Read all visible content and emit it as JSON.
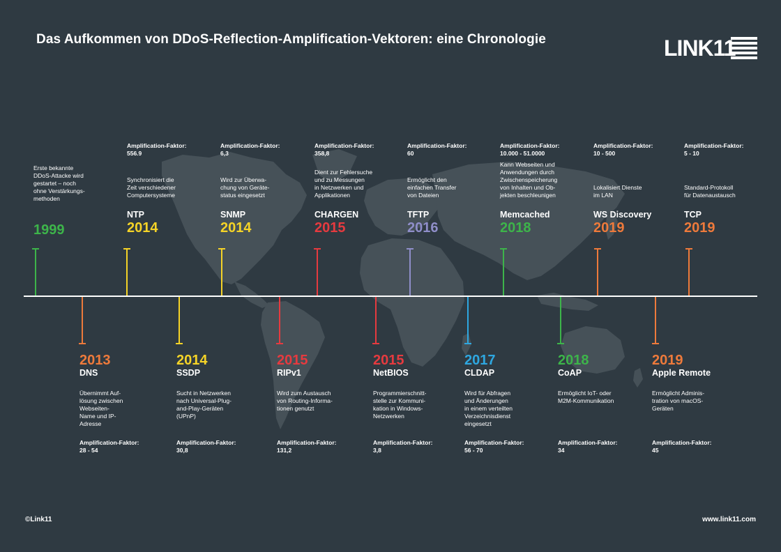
{
  "title": "Das Aufkommen von DDoS-Reflection-Amplification-Vektoren: eine Chronologie",
  "logo": {
    "text": "LINK11"
  },
  "colors": {
    "background": "#2f3a42",
    "map": "#465158",
    "green": "#3db44a",
    "yellow": "#f5d327",
    "red": "#e63a3f",
    "purple": "#8f8ec9",
    "orange": "#ee7a3b",
    "blue": "#2ea7e0"
  },
  "top_events": [
    {
      "year": "1999",
      "protocol": "",
      "color": "#3db44a",
      "description": "Erste bekannte\nDDoS-Attacke wird\ngestartet – noch\nohne Verstärkungs-\nmethoden",
      "amp_label": "",
      "amp_value": ""
    },
    {
      "year": "2014",
      "protocol": "NTP",
      "color": "#f5d327",
      "description": "Synchronisiert die\nZeit verschiedener\nComputersysteme",
      "amp_label": "Amplification-Faktor:",
      "amp_value": "556.9"
    },
    {
      "year": "2014",
      "protocol": "SNMP",
      "color": "#f5d327",
      "description": "Wird zur Überwa-\nchung von Geräte-\nstatus eingesetzt",
      "amp_label": "Amplification-Faktor:",
      "amp_value": "6,3"
    },
    {
      "year": "2015",
      "protocol": "CHARGEN",
      "color": "#e63a3f",
      "description": "Dient zur Fehlersuche\nund zu Messungen\nin Netzwerken und\nApplikationen",
      "amp_label": "Amplification-Faktor:",
      "amp_value": "358,8"
    },
    {
      "year": "2016",
      "protocol": "TFTP",
      "color": "#8f8ec9",
      "description": "Ermöglicht den\neinfachen Transfer\nvon Dateien",
      "amp_label": "Amplification-Faktor:",
      "amp_value": "60"
    },
    {
      "year": "2018",
      "protocol": "Memcached",
      "color": "#3db44a",
      "description": "Kann Webseiten und\nAnwendungen durch\nZwischenspeicherung\nvon Inhalten und Ob-\njekten beschleunigen",
      "amp_label": "Amplification-Faktor:",
      "amp_value": "10.000 - 51.0000"
    },
    {
      "year": "2019",
      "protocol": "WS Discovery",
      "color": "#ee7a3b",
      "description": "Lokalisiert Dienste\nim LAN",
      "amp_label": "Amplification-Faktor:",
      "amp_value": "10 - 500"
    },
    {
      "year": "2019",
      "protocol": "TCP",
      "color": "#ee7a3b",
      "description": "Standard-Protokoll\nfür Datenaustausch",
      "amp_label": "Amplification-Faktor:",
      "amp_value": "5 - 10"
    }
  ],
  "bottom_events": [
    {
      "year": "2013",
      "protocol": "DNS",
      "color": "#ee7a3b",
      "description": "Übernimmt Auf-\nlösung zwischen\nWebseiten-\nName und IP-\nAdresse",
      "amp_label": "Amplification-Faktor:",
      "amp_value": "28 - 54"
    },
    {
      "year": "2014",
      "protocol": "SSDP",
      "color": "#f5d327",
      "description": "Sucht in Netzwerken\nnach Universal-Plug-\nand-Play-Geräten\n(UPnP)",
      "amp_label": "Amplification-Faktor:",
      "amp_value": "30,8"
    },
    {
      "year": "2015",
      "protocol": "RIPv1",
      "color": "#e63a3f",
      "description": "Wird zum Austausch\nvon Routing-Informa-\ntionen genutzt",
      "amp_label": "Amplification-Faktor:",
      "amp_value": "131,2"
    },
    {
      "year": "2015",
      "protocol": "NetBIOS",
      "color": "#e63a3f",
      "description": "Programmierschnitt-\nstelle zur Kommuni-\nkation in Windows-\nNetzwerken",
      "amp_label": "Amplification-Faktor:",
      "amp_value": "3,8"
    },
    {
      "year": "2017",
      "protocol": "CLDAP",
      "color": "#2ea7e0",
      "description": "Wird für Abfragen\nund Änderungen\nin einem verteilten\nVerzeichnisdienst\neingesetzt",
      "amp_label": "Amplification-Faktor:",
      "amp_value": "56 - 70"
    },
    {
      "year": "2018",
      "protocol": "CoAP",
      "color": "#3db44a",
      "description": "Ermöglicht IoT- oder\nM2M-Kommunikation",
      "amp_label": "Amplification-Faktor:",
      "amp_value": "34"
    },
    {
      "year": "2019",
      "protocol": "Apple Remote",
      "color": "#ee7a3b",
      "description": "Ermöglicht Adminis-\ntration von macOS-\nGeräten",
      "amp_label": "Amplification-Faktor:",
      "amp_value": "45"
    }
  ],
  "footer": {
    "copyright": "©Link11",
    "website": "www.link11.com"
  }
}
